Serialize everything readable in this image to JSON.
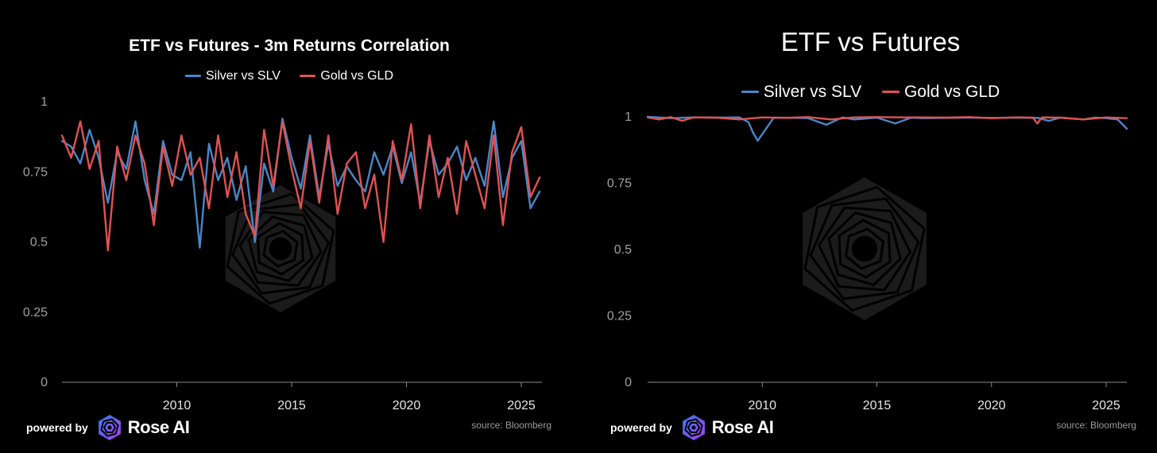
{
  "charts": [
    {
      "title": "ETF vs Futures  - 3m Returns Correlation",
      "footer": {
        "powered": "powered by",
        "brand": "Rose AI",
        "source": "source: Bloomberg"
      }
    },
    {
      "title": "ETF vs Futures",
      "footer": {
        "powered": "powered by",
        "brand": "Rose AI",
        "source": "source: Bloomberg"
      }
    }
  ],
  "colors": {
    "silver": "#4a86c8",
    "gold": "#e05252",
    "axis": "#a0a0a0",
    "watermark": "#1b1b1b"
  },
  "icons": {
    "watermark": "rose-logo-hexagon-icon",
    "logo": "rose-ai-logo-icon"
  },
  "chart_data": [
    {
      "type": "line",
      "title": "ETF vs Futures  - 3m Returns Correlation",
      "xlabel": "",
      "ylabel": "",
      "xlim": [
        2005.0,
        2025.9
      ],
      "ylim": [
        0,
        1
      ],
      "yticks": [
        0,
        0.25,
        0.5,
        0.75,
        1
      ],
      "ytick_labels": [
        "0",
        "0.25",
        "0.5",
        "0.75",
        "1"
      ],
      "xticks": [
        2010,
        2015,
        2020,
        2025
      ],
      "xtick_labels": [
        "2010",
        "2015",
        "2020",
        "2025"
      ],
      "legend_position": "top-center",
      "grid": false,
      "series": [
        {
          "name": "Silver vs SLV",
          "color": "#4a86c8",
          "x": [
            2005.0,
            2005.4,
            2005.8,
            2006.2,
            2006.6,
            2007.0,
            2007.4,
            2007.8,
            2008.2,
            2008.6,
            2009.0,
            2009.4,
            2009.8,
            2010.2,
            2010.6,
            2011.0,
            2011.4,
            2011.8,
            2012.2,
            2012.6,
            2013.0,
            2013.4,
            2013.8,
            2014.2,
            2014.6,
            2015.0,
            2015.4,
            2015.8,
            2016.2,
            2016.6,
            2017.0,
            2017.4,
            2017.8,
            2018.2,
            2018.6,
            2019.0,
            2019.4,
            2019.8,
            2020.2,
            2020.6,
            2021.0,
            2021.4,
            2021.8,
            2022.2,
            2022.6,
            2023.0,
            2023.4,
            2023.8,
            2024.2,
            2024.6,
            2025.0,
            2025.4,
            2025.8
          ],
          "y": [
            0.86,
            0.84,
            0.78,
            0.9,
            0.8,
            0.64,
            0.82,
            0.76,
            0.93,
            0.72,
            0.6,
            0.86,
            0.74,
            0.72,
            0.82,
            0.48,
            0.85,
            0.72,
            0.8,
            0.65,
            0.77,
            0.5,
            0.78,
            0.68,
            0.94,
            0.8,
            0.69,
            0.88,
            0.66,
            0.85,
            0.7,
            0.77,
            0.72,
            0.68,
            0.82,
            0.74,
            0.84,
            0.71,
            0.82,
            0.64,
            0.86,
            0.74,
            0.78,
            0.84,
            0.72,
            0.8,
            0.7,
            0.93,
            0.66,
            0.8,
            0.86,
            0.62,
            0.68
          ]
        },
        {
          "name": "Gold vs GLD",
          "color": "#e05252",
          "x": [
            2005.0,
            2005.4,
            2005.8,
            2006.2,
            2006.6,
            2007.0,
            2007.4,
            2007.8,
            2008.2,
            2008.6,
            2009.0,
            2009.4,
            2009.8,
            2010.2,
            2010.6,
            2011.0,
            2011.4,
            2011.8,
            2012.2,
            2012.6,
            2013.0,
            2013.4,
            2013.8,
            2014.2,
            2014.6,
            2015.0,
            2015.4,
            2015.8,
            2016.2,
            2016.6,
            2017.0,
            2017.4,
            2017.8,
            2018.2,
            2018.6,
            2019.0,
            2019.4,
            2019.8,
            2020.2,
            2020.6,
            2021.0,
            2021.4,
            2021.8,
            2022.2,
            2022.6,
            2023.0,
            2023.4,
            2023.8,
            2024.2,
            2024.6,
            2025.0,
            2025.4,
            2025.8
          ],
          "y": [
            0.88,
            0.8,
            0.93,
            0.76,
            0.86,
            0.47,
            0.84,
            0.72,
            0.88,
            0.78,
            0.56,
            0.84,
            0.7,
            0.88,
            0.74,
            0.8,
            0.62,
            0.88,
            0.66,
            0.82,
            0.6,
            0.52,
            0.9,
            0.7,
            0.93,
            0.76,
            0.62,
            0.86,
            0.64,
            0.88,
            0.6,
            0.78,
            0.82,
            0.62,
            0.74,
            0.5,
            0.86,
            0.72,
            0.92,
            0.62,
            0.88,
            0.66,
            0.8,
            0.6,
            0.86,
            0.74,
            0.62,
            0.88,
            0.56,
            0.82,
            0.91,
            0.66,
            0.73
          ]
        }
      ]
    },
    {
      "type": "line",
      "title": "ETF vs Futures",
      "xlabel": "",
      "ylabel": "",
      "xlim": [
        2005.0,
        2025.9
      ],
      "ylim": [
        0,
        1
      ],
      "yticks": [
        0,
        0.25,
        0.5,
        0.75,
        1
      ],
      "ytick_labels": [
        "0",
        "0.25",
        "0.5",
        "0.75",
        "1"
      ],
      "xticks": [
        2010,
        2015,
        2020,
        2025
      ],
      "xtick_labels": [
        "2010",
        "2015",
        "2020",
        "2025"
      ],
      "legend_position": "top-center",
      "grid": false,
      "series": [
        {
          "name": "Silver vs SLV",
          "color": "#4a86c8",
          "x": [
            2005.0,
            2006.0,
            2007.0,
            2008.0,
            2009.0,
            2009.4,
            2009.6,
            2009.8,
            2010.5,
            2011.5,
            2012.0,
            2012.8,
            2013.5,
            2014.0,
            2015.0,
            2015.8,
            2016.5,
            2017.0,
            2018.0,
            2019.0,
            2020.0,
            2021.0,
            2022.0,
            2022.5,
            2023.0,
            2024.0,
            2024.5,
            2025.0,
            2025.5,
            2025.9
          ],
          "y": [
            1.0,
            0.995,
            0.998,
            0.997,
            0.998,
            0.98,
            0.94,
            0.91,
            0.997,
            0.996,
            0.995,
            0.97,
            0.998,
            0.99,
            0.997,
            0.975,
            0.997,
            0.995,
            0.996,
            0.997,
            0.996,
            0.997,
            0.996,
            0.985,
            0.997,
            0.99,
            0.997,
            0.995,
            0.99,
            0.955
          ]
        },
        {
          "name": "Gold vs GLD",
          "color": "#e05252",
          "x": [
            2005.0,
            2005.5,
            2006.0,
            2006.5,
            2007.0,
            2008.0,
            2009.0,
            2010.0,
            2011.0,
            2012.0,
            2013.0,
            2014.0,
            2015.0,
            2016.0,
            2017.0,
            2018.0,
            2019.0,
            2020.0,
            2021.0,
            2021.8,
            2022.0,
            2022.2,
            2023.0,
            2024.0,
            2025.0,
            2025.9
          ],
          "y": [
            0.998,
            0.99,
            0.999,
            0.985,
            0.998,
            0.997,
            0.99,
            0.998,
            0.996,
            0.999,
            0.99,
            0.998,
            0.999,
            0.998,
            0.998,
            0.997,
            0.999,
            0.995,
            0.998,
            0.997,
            0.975,
            0.998,
            0.997,
            0.99,
            0.998,
            0.995
          ]
        }
      ]
    }
  ]
}
